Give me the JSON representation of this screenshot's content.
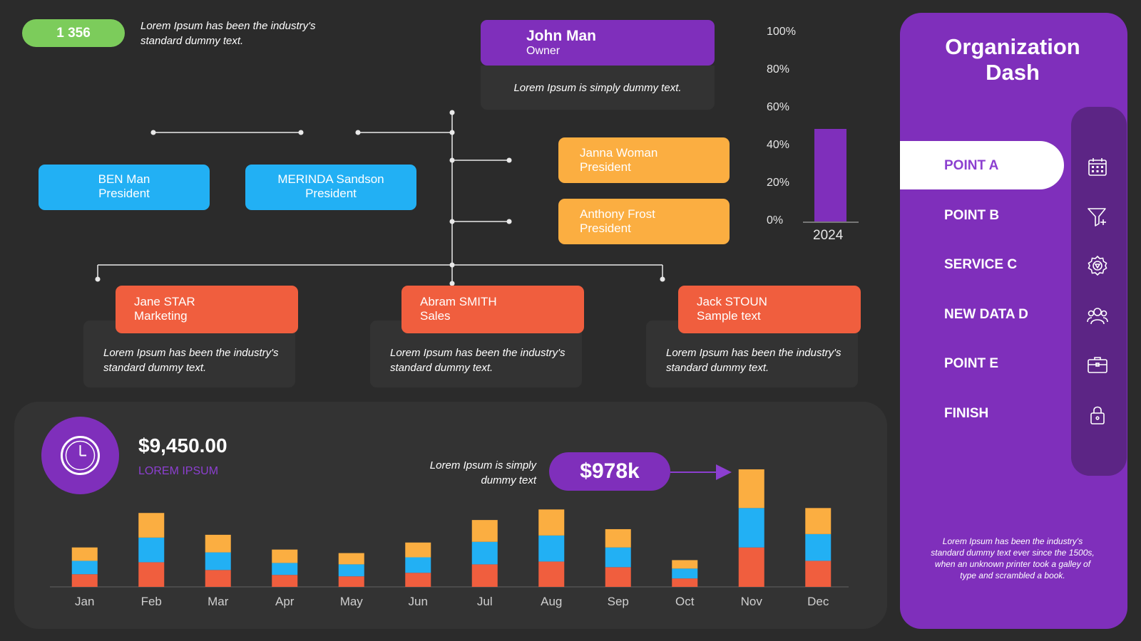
{
  "top_stat": {
    "count": "1 356",
    "note": "Lorem Ipsum has been the industry's standard dummy text."
  },
  "org": {
    "owner": {
      "name": "John Man",
      "role": "Owner",
      "desc": "Lorem Ipsum is simply dummy text."
    },
    "left_presidents": [
      {
        "name": "BEN Man",
        "role": "President"
      },
      {
        "name": "MERINDA Sandson",
        "role": "President"
      }
    ],
    "right_presidents": [
      {
        "name": "Janna Woman",
        "role": "President"
      },
      {
        "name": "Anthony Frost",
        "role": "President"
      }
    ],
    "departments": [
      {
        "name": "Jane STAR",
        "role": "Marketing",
        "desc": "Lorem Ipsum has been the industry's standard dummy text."
      },
      {
        "name": "Abram SMITH",
        "role": "Sales",
        "desc": "Lorem Ipsum has been the industry's standard dummy text."
      },
      {
        "name": "Jack STOUN",
        "role": "Sample text",
        "desc": "Lorem Ipsum has been the industry's standard dummy text."
      }
    ]
  },
  "mini_chart": {
    "type": "bar",
    "categories": [
      "2024"
    ],
    "values": [
      49
    ],
    "ticks": [
      "100%",
      "80%",
      "60%",
      "40%",
      "20%",
      "0%"
    ],
    "ylim": [
      0,
      100
    ],
    "color": "#7f2fbb"
  },
  "summary": {
    "amount": "$9,450.00",
    "amount_label": "LOREM IPSUM",
    "highlight_note": "Lorem Ipsum is simply dummy text",
    "highlight_value": "$978k"
  },
  "chart_data": {
    "type": "bar",
    "stacked": true,
    "categories": [
      "Jan",
      "Feb",
      "Mar",
      "Apr",
      "May",
      "Jun",
      "Jul",
      "Aug",
      "Sep",
      "Oct",
      "Nov",
      "Dec"
    ],
    "series": [
      {
        "color": "#f05e3e",
        "values": [
          18,
          35,
          24,
          17,
          15,
          20,
          32,
          36,
          28,
          12,
          56,
          37
        ]
      },
      {
        "color": "#22b0f4",
        "values": [
          19,
          35,
          25,
          17,
          17,
          22,
          32,
          37,
          28,
          14,
          56,
          38
        ]
      },
      {
        "color": "#fbae41",
        "values": [
          19,
          35,
          25,
          19,
          16,
          21,
          31,
          37,
          26,
          12,
          55,
          37
        ]
      }
    ],
    "ylim": [
      0,
      170
    ],
    "grid": false
  },
  "sidebar": {
    "title": "Organization Dash",
    "items": [
      {
        "label": "POINT A",
        "icon": "calendar-icon",
        "active": true
      },
      {
        "label": "POINT B",
        "icon": "filter-add-icon",
        "active": false
      },
      {
        "label": "SERVICE C",
        "icon": "gear-icon",
        "active": false
      },
      {
        "label": "NEW DATA D",
        "icon": "users-icon",
        "active": false
      },
      {
        "label": "POINT E",
        "icon": "briefcase-icon",
        "active": false
      },
      {
        "label": "FINISH",
        "icon": "lock-icon",
        "active": false
      }
    ],
    "footer": "Lorem Ipsum has been the industry's standard dummy text ever since the 1500s, when an unknown printer took a galley of type and scrambled  a book."
  },
  "colors": {
    "background": "#2b2b2b",
    "purple": "#7f2fbb",
    "blue": "#22b0f4",
    "orange": "#fbae41",
    "red": "#f05e3e",
    "green": "#7ccc5b"
  }
}
